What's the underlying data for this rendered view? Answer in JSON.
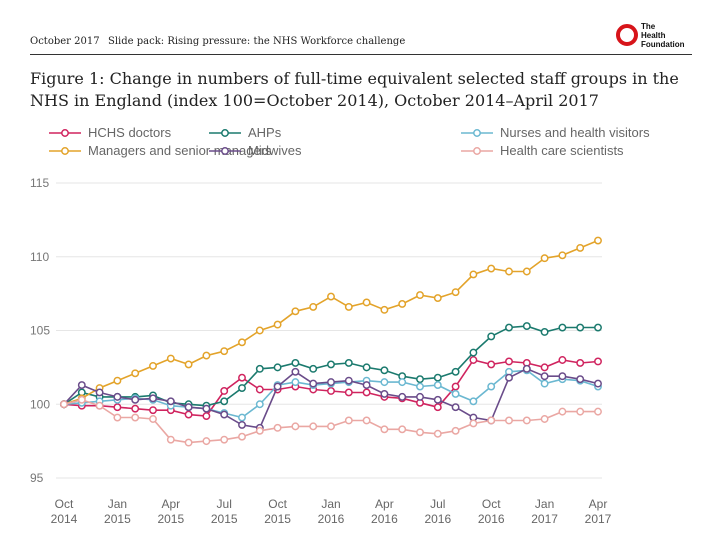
{
  "header": {
    "date": "October 2017",
    "slide_pack": "Slide pack: Rising pressure: the NHS Workforce challenge",
    "logo_text": "The\nHealth\nFoundation"
  },
  "figure_title": "Figure 1: Change in numbers of full-time equivalent selected staff groups in the NHS in England (index 100=October 2014), October 2014–April 2017",
  "chart_data": {
    "type": "line",
    "title": "Figure 1: Change in numbers of full-time equivalent selected staff groups in the NHS in England (index 100=October 2014), October 2014–April 2017",
    "xlabel": "",
    "ylabel": "",
    "ylim": [
      95,
      115
    ],
    "yticks": [
      95,
      100,
      105,
      110,
      115
    ],
    "grid": "horizontal",
    "legend_position": "top",
    "x_tick_labels": [
      {
        "index": 0,
        "label": [
          "Oct",
          "2014"
        ]
      },
      {
        "index": 3,
        "label": [
          "Jan",
          "2015"
        ]
      },
      {
        "index": 6,
        "label": [
          "Apr",
          "2015"
        ]
      },
      {
        "index": 9,
        "label": [
          "Jul",
          "2015"
        ]
      },
      {
        "index": 12,
        "label": [
          "Oct",
          "2015"
        ]
      },
      {
        "index": 15,
        "label": [
          "Jan",
          "2016"
        ]
      },
      {
        "index": 18,
        "label": [
          "Apr",
          "2016"
        ]
      },
      {
        "index": 21,
        "label": [
          "Jul",
          "2016"
        ]
      },
      {
        "index": 24,
        "label": [
          "Oct",
          "2016"
        ]
      },
      {
        "index": 27,
        "label": [
          "Jan",
          "2017"
        ]
      },
      {
        "index": 30,
        "label": [
          "Apr",
          "2017"
        ]
      }
    ],
    "x": [
      "Oct 2014",
      "Nov 2014",
      "Dec 2014",
      "Jan 2015",
      "Feb 2015",
      "Mar 2015",
      "Apr 2015",
      "May 2015",
      "Jun 2015",
      "Jul 2015",
      "Aug 2015",
      "Sep 2015",
      "Oct 2015",
      "Nov 2015",
      "Dec 2015",
      "Jan 2016",
      "Feb 2016",
      "Mar 2016",
      "Apr 2016",
      "May 2016",
      "Jun 2016",
      "Jul 2016",
      "Aug 2016",
      "Sep 2016",
      "Oct 2016",
      "Nov 2016",
      "Dec 2016",
      "Jan 2017",
      "Feb 2017",
      "Mar 2017",
      "Apr 2017"
    ],
    "series": [
      {
        "name": "HCHS doctors",
        "color": "#d0245f",
        "values": [
          100.0,
          99.9,
          99.9,
          99.8,
          99.7,
          99.6,
          99.6,
          99.3,
          99.2,
          100.9,
          101.8,
          101.0,
          101.0,
          101.2,
          101.0,
          100.9,
          100.8,
          100.8,
          100.5,
          100.4,
          100.1,
          99.8,
          101.2,
          103.0,
          102.7,
          102.9,
          102.8,
          102.5,
          103.0,
          102.8,
          102.9
        ]
      },
      {
        "name": "AHPs",
        "color": "#1b7a6e",
        "values": [
          100.0,
          100.8,
          100.5,
          100.5,
          100.5,
          100.6,
          100.1,
          100.0,
          99.9,
          100.2,
          101.1,
          102.4,
          102.5,
          102.8,
          102.4,
          102.7,
          102.8,
          102.5,
          102.3,
          101.9,
          101.7,
          101.8,
          102.2,
          103.5,
          104.6,
          105.2,
          105.3,
          104.9,
          105.2,
          105.2,
          105.2
        ]
      },
      {
        "name": "Nurses and health visitors",
        "color": "#6bb8d1",
        "values": [
          100.0,
          100.1,
          100.2,
          100.3,
          100.4,
          100.3,
          99.9,
          99.8,
          99.7,
          99.4,
          99.1,
          100.0,
          101.3,
          101.5,
          101.3,
          101.4,
          101.5,
          101.6,
          101.5,
          101.5,
          101.2,
          101.3,
          100.7,
          100.2,
          101.2,
          102.2,
          102.3,
          101.4,
          101.7,
          101.6,
          101.2
        ]
      },
      {
        "name": "Managers and senior managers",
        "color": "#e3a32a",
        "values": [
          100.0,
          100.4,
          101.1,
          101.6,
          102.1,
          102.6,
          103.1,
          102.7,
          103.3,
          103.6,
          104.2,
          105.0,
          105.4,
          106.3,
          106.6,
          107.3,
          106.6,
          106.9,
          106.4,
          106.8,
          107.4,
          107.2,
          107.6,
          108.8,
          109.2,
          109.0,
          109.0,
          109.9,
          110.1,
          110.6,
          111.1
        ]
      },
      {
        "name": "Midwives",
        "color": "#6a4c8a",
        "values": [
          100.0,
          101.3,
          100.8,
          100.5,
          100.3,
          100.4,
          100.2,
          99.8,
          99.7,
          99.3,
          98.6,
          98.4,
          101.2,
          102.2,
          101.4,
          101.5,
          101.6,
          101.3,
          100.7,
          100.5,
          100.5,
          100.3,
          99.8,
          99.1,
          98.9,
          101.8,
          102.4,
          101.9,
          101.9,
          101.7,
          101.4
        ]
      },
      {
        "name": "Health care scientists",
        "color": "#eaa7a3",
        "values": [
          100.0,
          100.3,
          99.9,
          99.1,
          99.1,
          99.0,
          97.6,
          97.4,
          97.5,
          97.6,
          97.8,
          98.2,
          98.4,
          98.5,
          98.5,
          98.5,
          98.9,
          98.9,
          98.3,
          98.3,
          98.1,
          98.0,
          98.2,
          98.7,
          98.9,
          98.9,
          98.9,
          99.0,
          99.5,
          99.5,
          99.5
        ]
      }
    ]
  }
}
